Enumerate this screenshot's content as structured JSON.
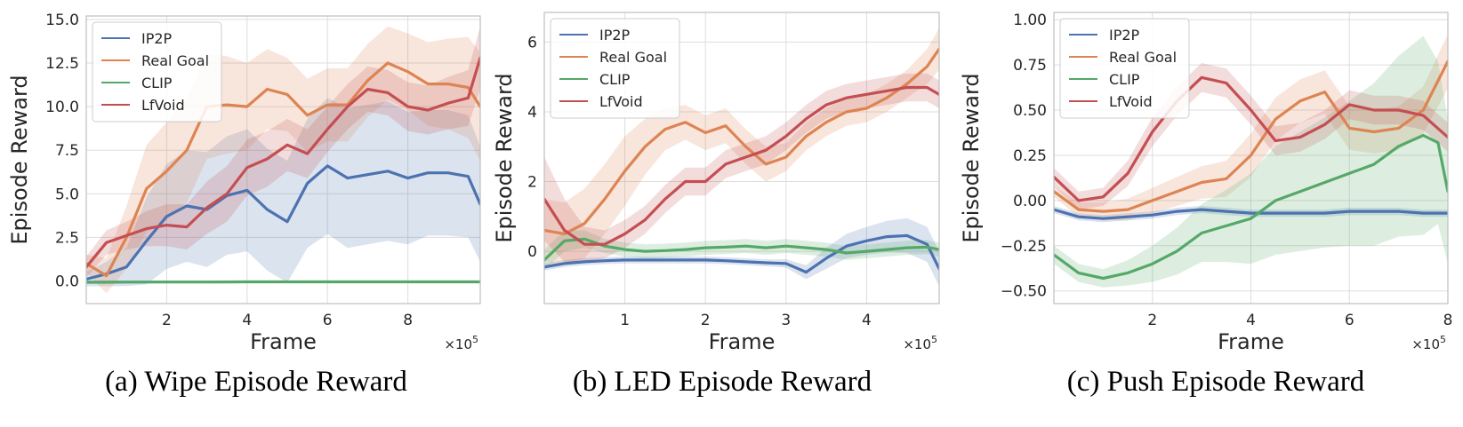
{
  "colors": {
    "IP2P": "#4c72b0",
    "Real Goal": "#dd8452",
    "CLIP": "#55a868",
    "LfVoid": "#c44e52",
    "grid": "#dddddd",
    "frame": "#bfbfbf"
  },
  "chart_data": [
    {
      "type": "line",
      "caption": "(a) Wipe Episode Reward",
      "xlabel": "Frame",
      "ylabel": "Episode Reward",
      "x_multiplier": "×10",
      "x_multiplier_exp": "5",
      "xlim": [
        0.0,
        9.8
      ],
      "ylim": [
        -1.3,
        15.2
      ],
      "xticks": [
        2,
        4,
        6,
        8
      ],
      "xtick_labels": [
        "2",
        "4",
        "6",
        "8"
      ],
      "yticks": [
        0,
        2.5,
        5,
        7.5,
        10,
        12.5,
        15
      ],
      "ytick_labels": [
        "0.0",
        "2.5",
        "5.0",
        "7.5",
        "10.0",
        "12.5",
        "15.0"
      ],
      "legend_position": "top-left",
      "grid": true,
      "series": [
        {
          "name": "IP2P",
          "x": [
            0,
            0.5,
            1,
            1.5,
            2,
            2.5,
            3,
            3.5,
            4,
            4.5,
            5,
            5.5,
            6,
            6.5,
            7,
            7.5,
            8,
            8.5,
            9,
            9.5,
            9.8
          ],
          "y": [
            0.1,
            0.4,
            0.8,
            2.3,
            3.7,
            4.3,
            4.1,
            4.9,
            5.2,
            4.1,
            3.4,
            5.6,
            6.6,
            5.9,
            6.1,
            6.3,
            5.9,
            6.2,
            6.2,
            6.0,
            4.4
          ],
          "band": [
            0.4,
            0.7,
            1.1,
            2.5,
            3.0,
            3.2,
            3.3,
            3.4,
            3.5,
            3.5,
            3.5,
            3.7,
            3.9,
            4.0,
            4.0,
            4.0,
            3.8,
            3.6,
            3.6,
            3.5,
            3.3
          ]
        },
        {
          "name": "Real Goal",
          "x": [
            0,
            0.5,
            1,
            1.5,
            2,
            2.5,
            3,
            3.5,
            4,
            4.5,
            5,
            5.5,
            6,
            6.5,
            7,
            7.5,
            8,
            8.5,
            9,
            9.5,
            9.8
          ],
          "y": [
            1.0,
            0.3,
            2.5,
            5.3,
            6.3,
            7.5,
            10.0,
            10.1,
            10.0,
            11.0,
            10.7,
            9.5,
            10.1,
            10.1,
            11.5,
            12.5,
            12.0,
            11.3,
            11.3,
            11.1,
            10.0
          ],
          "band": [
            0.5,
            1.0,
            1.8,
            2.5,
            2.8,
            3.0,
            3.0,
            2.8,
            2.5,
            2.3,
            2.1,
            2.1,
            2.1,
            2.1,
            2.1,
            2.1,
            2.2,
            2.4,
            2.6,
            2.9,
            3.1
          ]
        },
        {
          "name": "CLIP",
          "x": [
            0,
            1,
            2,
            3,
            4,
            5,
            6,
            7,
            8,
            9,
            9.8
          ],
          "y": [
            -0.08,
            -0.07,
            -0.06,
            -0.06,
            -0.05,
            -0.05,
            -0.05,
            -0.05,
            -0.05,
            -0.05,
            -0.05
          ],
          "band": [
            0.08,
            0.08,
            0.08,
            0.08,
            0.08,
            0.08,
            0.08,
            0.08,
            0.08,
            0.08,
            0.08
          ]
        },
        {
          "name": "LfVoid",
          "x": [
            0,
            0.5,
            1,
            1.5,
            2,
            2.5,
            3,
            3.5,
            4,
            4.5,
            5,
            5.5,
            6,
            6.5,
            7,
            7.5,
            8,
            8.5,
            9,
            9.5,
            9.8
          ],
          "y": [
            0.8,
            2.2,
            2.6,
            3.0,
            3.2,
            3.1,
            4.2,
            5.0,
            6.5,
            7.0,
            7.8,
            7.3,
            8.7,
            10.0,
            11.0,
            10.8,
            10.0,
            9.8,
            10.2,
            10.5,
            12.8
          ],
          "band": [
            0.6,
            0.7,
            0.8,
            1.0,
            1.2,
            1.3,
            1.5,
            1.6,
            1.6,
            1.6,
            1.5,
            1.4,
            1.3,
            1.3,
            1.3,
            1.3,
            1.4,
            1.4,
            1.5,
            1.6,
            1.8
          ]
        }
      ]
    },
    {
      "type": "line",
      "caption": "(b) LED Episode Reward",
      "xlabel": "Frame",
      "ylabel": "Episode Reward",
      "x_multiplier": "×10",
      "x_multiplier_exp": "5",
      "xlim": [
        0.0,
        4.9
      ],
      "ylim": [
        -1.5,
        6.85
      ],
      "xticks": [
        1,
        2,
        3,
        4
      ],
      "xtick_labels": [
        "1",
        "2",
        "3",
        "4"
      ],
      "yticks": [
        0,
        2,
        4,
        6
      ],
      "ytick_labels": [
        "0",
        "2",
        "4",
        "6"
      ],
      "legend_position": "top-left",
      "grid": true,
      "series": [
        {
          "name": "IP2P",
          "x": [
            0,
            0.25,
            0.5,
            0.75,
            1,
            1.25,
            1.5,
            1.75,
            2,
            2.25,
            2.5,
            2.75,
            3,
            3.25,
            3.5,
            3.75,
            4,
            4.25,
            4.5,
            4.75,
            4.9
          ],
          "y": [
            -0.45,
            -0.35,
            -0.3,
            -0.27,
            -0.25,
            -0.25,
            -0.25,
            -0.25,
            -0.25,
            -0.27,
            -0.3,
            -0.33,
            -0.35,
            -0.6,
            -0.2,
            0.15,
            0.3,
            0.42,
            0.45,
            0.2,
            -0.5
          ],
          "band": [
            0.1,
            0.1,
            0.1,
            0.1,
            0.1,
            0.1,
            0.1,
            0.1,
            0.1,
            0.1,
            0.1,
            0.1,
            0.12,
            0.2,
            0.3,
            0.35,
            0.4,
            0.45,
            0.5,
            0.5,
            0.5
          ]
        },
        {
          "name": "Real Goal",
          "x": [
            0,
            0.25,
            0.5,
            0.75,
            1,
            1.25,
            1.5,
            1.75,
            2,
            2.25,
            2.5,
            2.75,
            3,
            3.25,
            3.5,
            3.75,
            4,
            4.25,
            4.5,
            4.75,
            4.9
          ],
          "y": [
            0.6,
            0.5,
            0.8,
            1.5,
            2.3,
            3.0,
            3.5,
            3.7,
            3.4,
            3.6,
            3.0,
            2.5,
            2.7,
            3.3,
            3.7,
            4.0,
            4.1,
            4.4,
            4.8,
            5.3,
            5.8
          ],
          "band": [
            0.9,
            0.9,
            1.0,
            1.0,
            1.0,
            0.8,
            0.6,
            0.5,
            0.5,
            0.5,
            0.5,
            0.5,
            0.4,
            0.4,
            0.4,
            0.4,
            0.4,
            0.4,
            0.4,
            0.5,
            0.6
          ]
        },
        {
          "name": "CLIP",
          "x": [
            0,
            0.25,
            0.5,
            0.75,
            1,
            1.25,
            1.5,
            1.75,
            2,
            2.25,
            2.5,
            2.75,
            3,
            3.25,
            3.5,
            3.75,
            4,
            4.25,
            4.5,
            4.75,
            4.9
          ],
          "y": [
            -0.25,
            0.3,
            0.35,
            0.15,
            0.05,
            0.0,
            0.02,
            0.05,
            0.1,
            0.12,
            0.15,
            0.1,
            0.15,
            0.1,
            0.05,
            -0.05,
            0.0,
            0.05,
            0.1,
            0.12,
            0.05
          ],
          "band": [
            0.3,
            0.3,
            0.25,
            0.2,
            0.2,
            0.2,
            0.2,
            0.2,
            0.2,
            0.2,
            0.2,
            0.2,
            0.2,
            0.2,
            0.2,
            0.2,
            0.2,
            0.2,
            0.2,
            0.2,
            0.2
          ]
        },
        {
          "name": "LfVoid",
          "x": [
            0,
            0.25,
            0.5,
            0.75,
            1,
            1.25,
            1.5,
            1.75,
            2,
            2.25,
            2.5,
            2.75,
            3,
            3.25,
            3.5,
            3.75,
            4,
            4.25,
            4.5,
            4.75,
            4.9
          ],
          "y": [
            1.5,
            0.6,
            0.2,
            0.2,
            0.5,
            0.9,
            1.5,
            2.0,
            2.0,
            2.5,
            2.7,
            2.9,
            3.3,
            3.8,
            4.2,
            4.4,
            4.5,
            4.6,
            4.7,
            4.7,
            4.5
          ],
          "band": [
            1.2,
            0.9,
            0.5,
            0.4,
            0.4,
            0.4,
            0.4,
            0.4,
            0.4,
            0.4,
            0.4,
            0.4,
            0.4,
            0.4,
            0.4,
            0.4,
            0.4,
            0.4,
            0.4,
            0.4,
            0.4
          ]
        }
      ]
    },
    {
      "type": "line",
      "caption": "(c) Push Episode Reward",
      "xlabel": "Frame",
      "ylabel": "Episode Reward",
      "x_multiplier": "×10",
      "x_multiplier_exp": "5",
      "xlim": [
        0.0,
        8.0
      ],
      "ylim": [
        -0.57,
        1.04
      ],
      "xticks": [
        2,
        4,
        6,
        8
      ],
      "xtick_labels": [
        "2",
        "4",
        "6",
        "8"
      ],
      "yticks": [
        -0.5,
        -0.25,
        0,
        0.25,
        0.5,
        0.75,
        1.0
      ],
      "ytick_labels": [
        "−0.50",
        "−0.25",
        "0.00",
        "0.25",
        "0.50",
        "0.75",
        "1.00"
      ],
      "legend_position": "top-left",
      "grid": true,
      "series": [
        {
          "name": "IP2P",
          "x": [
            0,
            0.5,
            1,
            1.5,
            2,
            2.5,
            3,
            3.5,
            4,
            4.5,
            5,
            5.5,
            6,
            6.5,
            7,
            7.5,
            8
          ],
          "y": [
            -0.05,
            -0.09,
            -0.1,
            -0.09,
            -0.08,
            -0.06,
            -0.05,
            -0.06,
            -0.07,
            -0.07,
            -0.07,
            -0.07,
            -0.06,
            -0.06,
            -0.06,
            -0.07,
            -0.07
          ],
          "band": [
            0.02,
            0.02,
            0.02,
            0.02,
            0.02,
            0.02,
            0.02,
            0.02,
            0.02,
            0.02,
            0.02,
            0.02,
            0.02,
            0.02,
            0.02,
            0.02,
            0.02
          ]
        },
        {
          "name": "Real Goal",
          "x": [
            0,
            0.5,
            1,
            1.5,
            2,
            2.5,
            3,
            3.5,
            4,
            4.5,
            5,
            5.5,
            6,
            6.5,
            7,
            7.5,
            8
          ],
          "y": [
            0.05,
            -0.05,
            -0.06,
            -0.05,
            0.0,
            0.05,
            0.1,
            0.12,
            0.25,
            0.45,
            0.55,
            0.6,
            0.4,
            0.38,
            0.4,
            0.5,
            0.77
          ],
          "band": [
            0.03,
            0.04,
            0.05,
            0.06,
            0.07,
            0.08,
            0.09,
            0.1,
            0.12,
            0.12,
            0.12,
            0.12,
            0.12,
            0.12,
            0.12,
            0.13,
            0.15
          ]
        },
        {
          "name": "CLIP",
          "x": [
            0,
            0.5,
            1,
            1.5,
            2,
            2.5,
            3,
            3.5,
            4,
            4.5,
            5,
            5.5,
            6,
            6.5,
            7,
            7.5,
            7.8,
            8
          ],
          "y": [
            -0.3,
            -0.4,
            -0.43,
            -0.4,
            -0.35,
            -0.28,
            -0.18,
            -0.14,
            -0.1,
            0.0,
            0.05,
            0.1,
            0.15,
            0.2,
            0.3,
            0.36,
            0.32,
            0.05
          ],
          "band": [
            0.05,
            0.05,
            0.05,
            0.07,
            0.1,
            0.13,
            0.16,
            0.2,
            0.25,
            0.3,
            0.33,
            0.36,
            0.4,
            0.45,
            0.5,
            0.55,
            0.45,
            0.4
          ]
        },
        {
          "name": "LfVoid",
          "x": [
            0,
            0.5,
            1,
            1.5,
            2,
            2.5,
            3,
            3.5,
            4,
            4.5,
            5,
            5.5,
            6,
            6.5,
            7,
            7.5,
            8
          ],
          "y": [
            0.13,
            0.0,
            0.02,
            0.15,
            0.38,
            0.55,
            0.68,
            0.65,
            0.5,
            0.33,
            0.35,
            0.42,
            0.53,
            0.5,
            0.5,
            0.47,
            0.35
          ],
          "band": [
            0.05,
            0.05,
            0.05,
            0.07,
            0.08,
            0.08,
            0.08,
            0.08,
            0.08,
            0.08,
            0.08,
            0.08,
            0.08,
            0.08,
            0.08,
            0.08,
            0.08
          ]
        }
      ]
    }
  ]
}
